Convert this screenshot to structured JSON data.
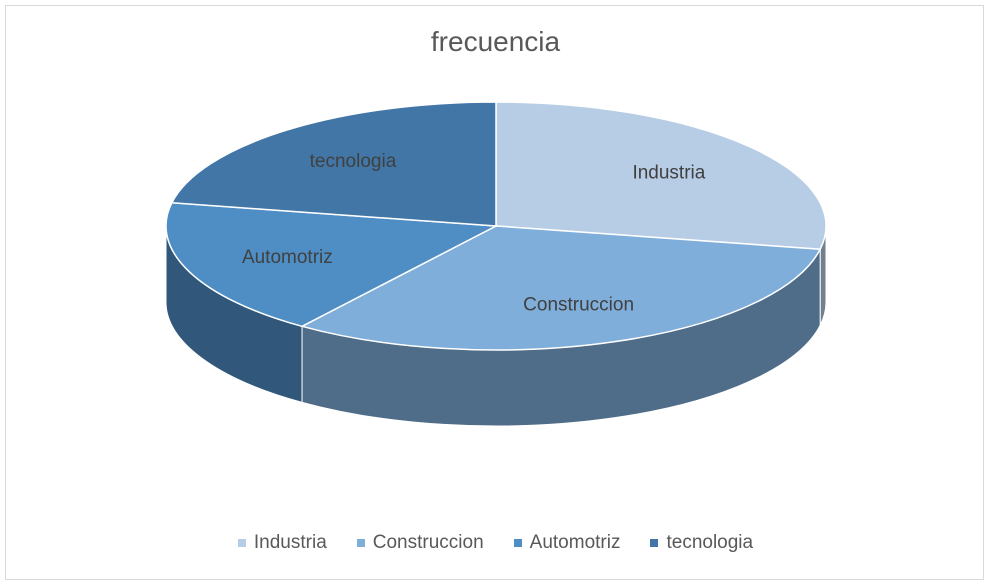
{
  "chart_data": {
    "type": "pie",
    "title": "frecuencia",
    "style": "3d",
    "legend_position": "bottom",
    "slices": [
      {
        "label": "Industria",
        "value": 28,
        "color": "#b7cde6"
      },
      {
        "label": "Construccion",
        "value": 32,
        "color": "#80aedb"
      },
      {
        "label": "Automotriz",
        "value": 18,
        "color": "#4f8dc5"
      },
      {
        "label": "tecnologia",
        "value": 22,
        "color": "#4176a6"
      }
    ]
  }
}
